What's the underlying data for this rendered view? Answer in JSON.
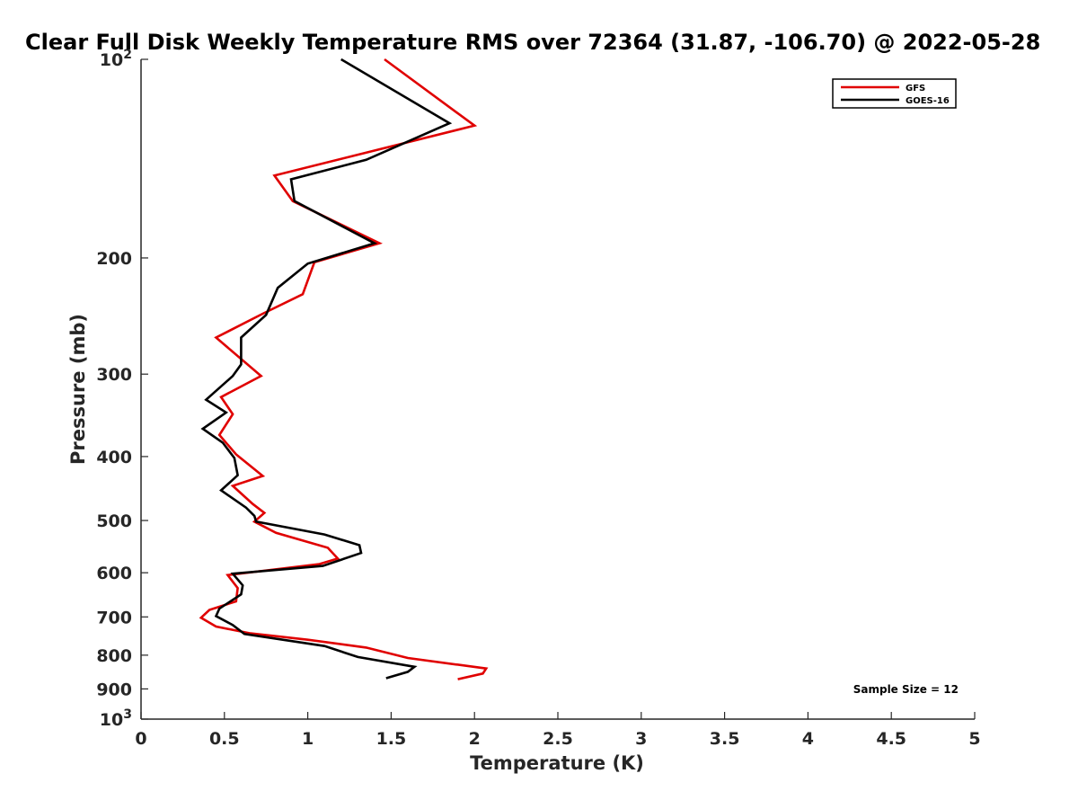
{
  "chart_data": {
    "type": "line",
    "title": "Clear Full Disk Weekly Temperature RMS over 72364 (31.87, -106.70) @ 2022-05-28",
    "xlabel": "Temperature (K)",
    "ylabel": "Pressure (mb)",
    "xlim": [
      0,
      5
    ],
    "ylim": [
      1000,
      100
    ],
    "yscale": "log",
    "x_ticks": [
      0,
      0.5,
      1,
      1.5,
      2,
      2.5,
      3,
      3.5,
      4,
      4.5,
      5
    ],
    "x_tick_labels": [
      "0",
      "0.5",
      "1",
      "1.5",
      "2",
      "2.5",
      "3",
      "3.5",
      "4",
      "4.5",
      "5"
    ],
    "y_ticks": [
      100,
      200,
      300,
      400,
      500,
      600,
      700,
      800,
      900,
      1000
    ],
    "y_tick_labels": [
      {
        "base": "10",
        "exp": "2"
      },
      {
        "base": "200",
        "exp": ""
      },
      {
        "base": "300",
        "exp": ""
      },
      {
        "base": "400",
        "exp": ""
      },
      {
        "base": "500",
        "exp": ""
      },
      {
        "base": "600",
        "exp": ""
      },
      {
        "base": "700",
        "exp": ""
      },
      {
        "base": "800",
        "exp": ""
      },
      {
        "base": "900",
        "exp": ""
      },
      {
        "base": "10",
        "exp": "3"
      }
    ],
    "grid": false,
    "legend_position": "top-right",
    "annotation": "Sample Size = 12",
    "series": [
      {
        "name": "GFS",
        "color": "#e00000",
        "points": [
          [
            1.46,
            100
          ],
          [
            2.0,
            126
          ],
          [
            0.8,
            150
          ],
          [
            0.91,
            164
          ],
          [
            1.43,
            190
          ],
          [
            1.04,
            203
          ],
          [
            0.97,
            227
          ],
          [
            0.73,
            243
          ],
          [
            0.45,
            264
          ],
          [
            0.72,
            302
          ],
          [
            0.48,
            325
          ],
          [
            0.55,
            345
          ],
          [
            0.47,
            371
          ],
          [
            0.57,
            397
          ],
          [
            0.73,
            428
          ],
          [
            0.55,
            443
          ],
          [
            0.67,
            472
          ],
          [
            0.74,
            487
          ],
          [
            0.68,
            502
          ],
          [
            0.81,
            522
          ],
          [
            1.12,
            550
          ],
          [
            1.18,
            571
          ],
          [
            1.07,
            582
          ],
          [
            0.52,
            605
          ],
          [
            0.58,
            633
          ],
          [
            0.57,
            663
          ],
          [
            0.41,
            683
          ],
          [
            0.36,
            702
          ],
          [
            0.45,
            724
          ],
          [
            0.65,
            741
          ],
          [
            1.0,
            758
          ],
          [
            1.35,
            779
          ],
          [
            1.6,
            808
          ],
          [
            2.07,
            838
          ],
          [
            2.05,
            853
          ],
          [
            1.9,
            870
          ]
        ]
      },
      {
        "name": "GOES-16",
        "color": "#000000",
        "points": [
          [
            1.2,
            100
          ],
          [
            1.85,
            125
          ],
          [
            1.35,
            142
          ],
          [
            0.9,
            152
          ],
          [
            0.92,
            164
          ],
          [
            1.4,
            190
          ],
          [
            1.0,
            204
          ],
          [
            0.82,
            222
          ],
          [
            0.75,
            244
          ],
          [
            0.6,
            264
          ],
          [
            0.6,
            290
          ],
          [
            0.55,
            302
          ],
          [
            0.39,
            328
          ],
          [
            0.51,
            343
          ],
          [
            0.37,
            363
          ],
          [
            0.49,
            381
          ],
          [
            0.56,
            402
          ],
          [
            0.58,
            427
          ],
          [
            0.48,
            450
          ],
          [
            0.63,
            478
          ],
          [
            0.68,
            492
          ],
          [
            0.69,
            502
          ],
          [
            1.1,
            525
          ],
          [
            1.31,
            545
          ],
          [
            1.32,
            560
          ],
          [
            1.09,
            586
          ],
          [
            0.55,
            602
          ],
          [
            0.61,
            627
          ],
          [
            0.6,
            647
          ],
          [
            0.47,
            680
          ],
          [
            0.45,
            698
          ],
          [
            0.55,
            720
          ],
          [
            0.62,
            743
          ],
          [
            1.1,
            775
          ],
          [
            1.3,
            805
          ],
          [
            1.64,
            833
          ],
          [
            1.6,
            848
          ],
          [
            1.47,
            867
          ]
        ]
      }
    ]
  }
}
